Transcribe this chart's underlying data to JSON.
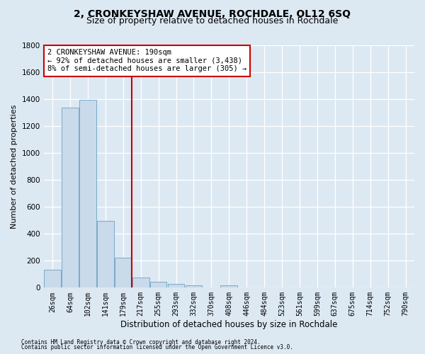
{
  "title": "2, CRONKEYSHAW AVENUE, ROCHDALE, OL12 6SQ",
  "subtitle": "Size of property relative to detached houses in Rochdale",
  "xlabel": "Distribution of detached houses by size in Rochdale",
  "ylabel": "Number of detached properties",
  "footnote1": "Contains HM Land Registry data © Crown copyright and database right 2024.",
  "footnote2": "Contains public sector information licensed under the Open Government Licence v3.0.",
  "categories": [
    "26sqm",
    "64sqm",
    "102sqm",
    "141sqm",
    "179sqm",
    "217sqm",
    "255sqm",
    "293sqm",
    "332sqm",
    "370sqm",
    "408sqm",
    "446sqm",
    "484sqm",
    "523sqm",
    "561sqm",
    "599sqm",
    "637sqm",
    "675sqm",
    "714sqm",
    "752sqm",
    "790sqm"
  ],
  "values": [
    135,
    1335,
    1395,
    495,
    225,
    75,
    45,
    28,
    15,
    0,
    18,
    0,
    0,
    0,
    0,
    0,
    0,
    0,
    0,
    0,
    0
  ],
  "bar_color": "#c9daea",
  "bar_edge_color": "#7aaac8",
  "vline_x": 4.5,
  "vline_color": "#cc0000",
  "annotation_text": "2 CRONKEYSHAW AVENUE: 190sqm\n← 92% of detached houses are smaller (3,438)\n8% of semi-detached houses are larger (305) →",
  "annotation_box_color": "#ffffff",
  "annotation_box_edge": "#cc0000",
  "ylim": [
    0,
    1800
  ],
  "yticks": [
    0,
    200,
    400,
    600,
    800,
    1000,
    1200,
    1400,
    1600,
    1800
  ],
  "bg_color": "#dce8f2",
  "plot_bg_color": "#dce8f2",
  "grid_color": "#ffffff",
  "title_fontsize": 10,
  "subtitle_fontsize": 9,
  "ylabel_fontsize": 8,
  "xlabel_fontsize": 8.5,
  "tick_fontsize": 7,
  "annot_fontsize": 7.5,
  "footnote_fontsize": 5.5
}
